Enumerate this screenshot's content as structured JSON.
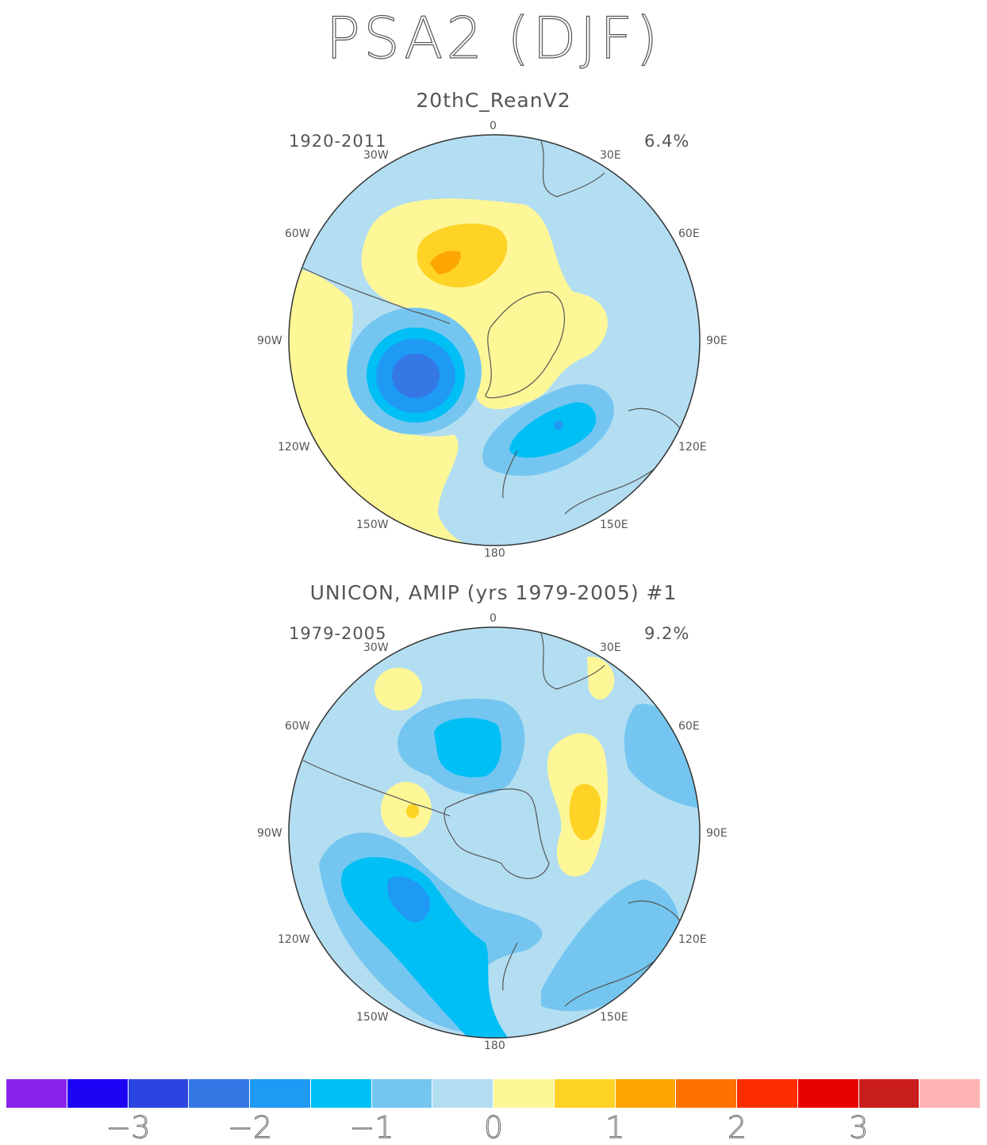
{
  "figure": {
    "title": "PSA2 (DJF)"
  },
  "panels": [
    {
      "title": "20thC_ReanV2",
      "period": "1920-2011",
      "percent": "6.4%",
      "lon_labels": {
        "n0": "0",
        "w30": "30W",
        "e30": "30E",
        "w60": "60W",
        "e60": "60E",
        "w90": "90W",
        "e90": "90E",
        "w120": "120W",
        "e120": "120E",
        "w150": "150W",
        "e150": "150E",
        "s180": "180"
      }
    },
    {
      "title": "UNICON, AMIP (yrs 1979-2005)     #1",
      "period": "1979-2005",
      "percent": "9.2%",
      "lon_labels": {
        "n0": "0",
        "w30": "30W",
        "e30": "30E",
        "w60": "60W",
        "e60": "60E",
        "w90": "90W",
        "e90": "90E",
        "w120": "120W",
        "e120": "120E",
        "w150": "150W",
        "e150": "150E",
        "s180": "180"
      }
    }
  ],
  "colorbar": {
    "colors": [
      "#8a23ea",
      "#1c05f5",
      "#2b45e0",
      "#3478e6",
      "#1e9af5",
      "#00bff5",
      "#74c6f0",
      "#b3def2",
      "#fef797",
      "#fed325",
      "#fda500",
      "#fd7200",
      "#fe2d00",
      "#e80000",
      "#c91c1c",
      "#ffb3b3"
    ],
    "labels": [
      "−3",
      "−2",
      "−1",
      "0",
      "1",
      "2",
      "3"
    ]
  }
}
